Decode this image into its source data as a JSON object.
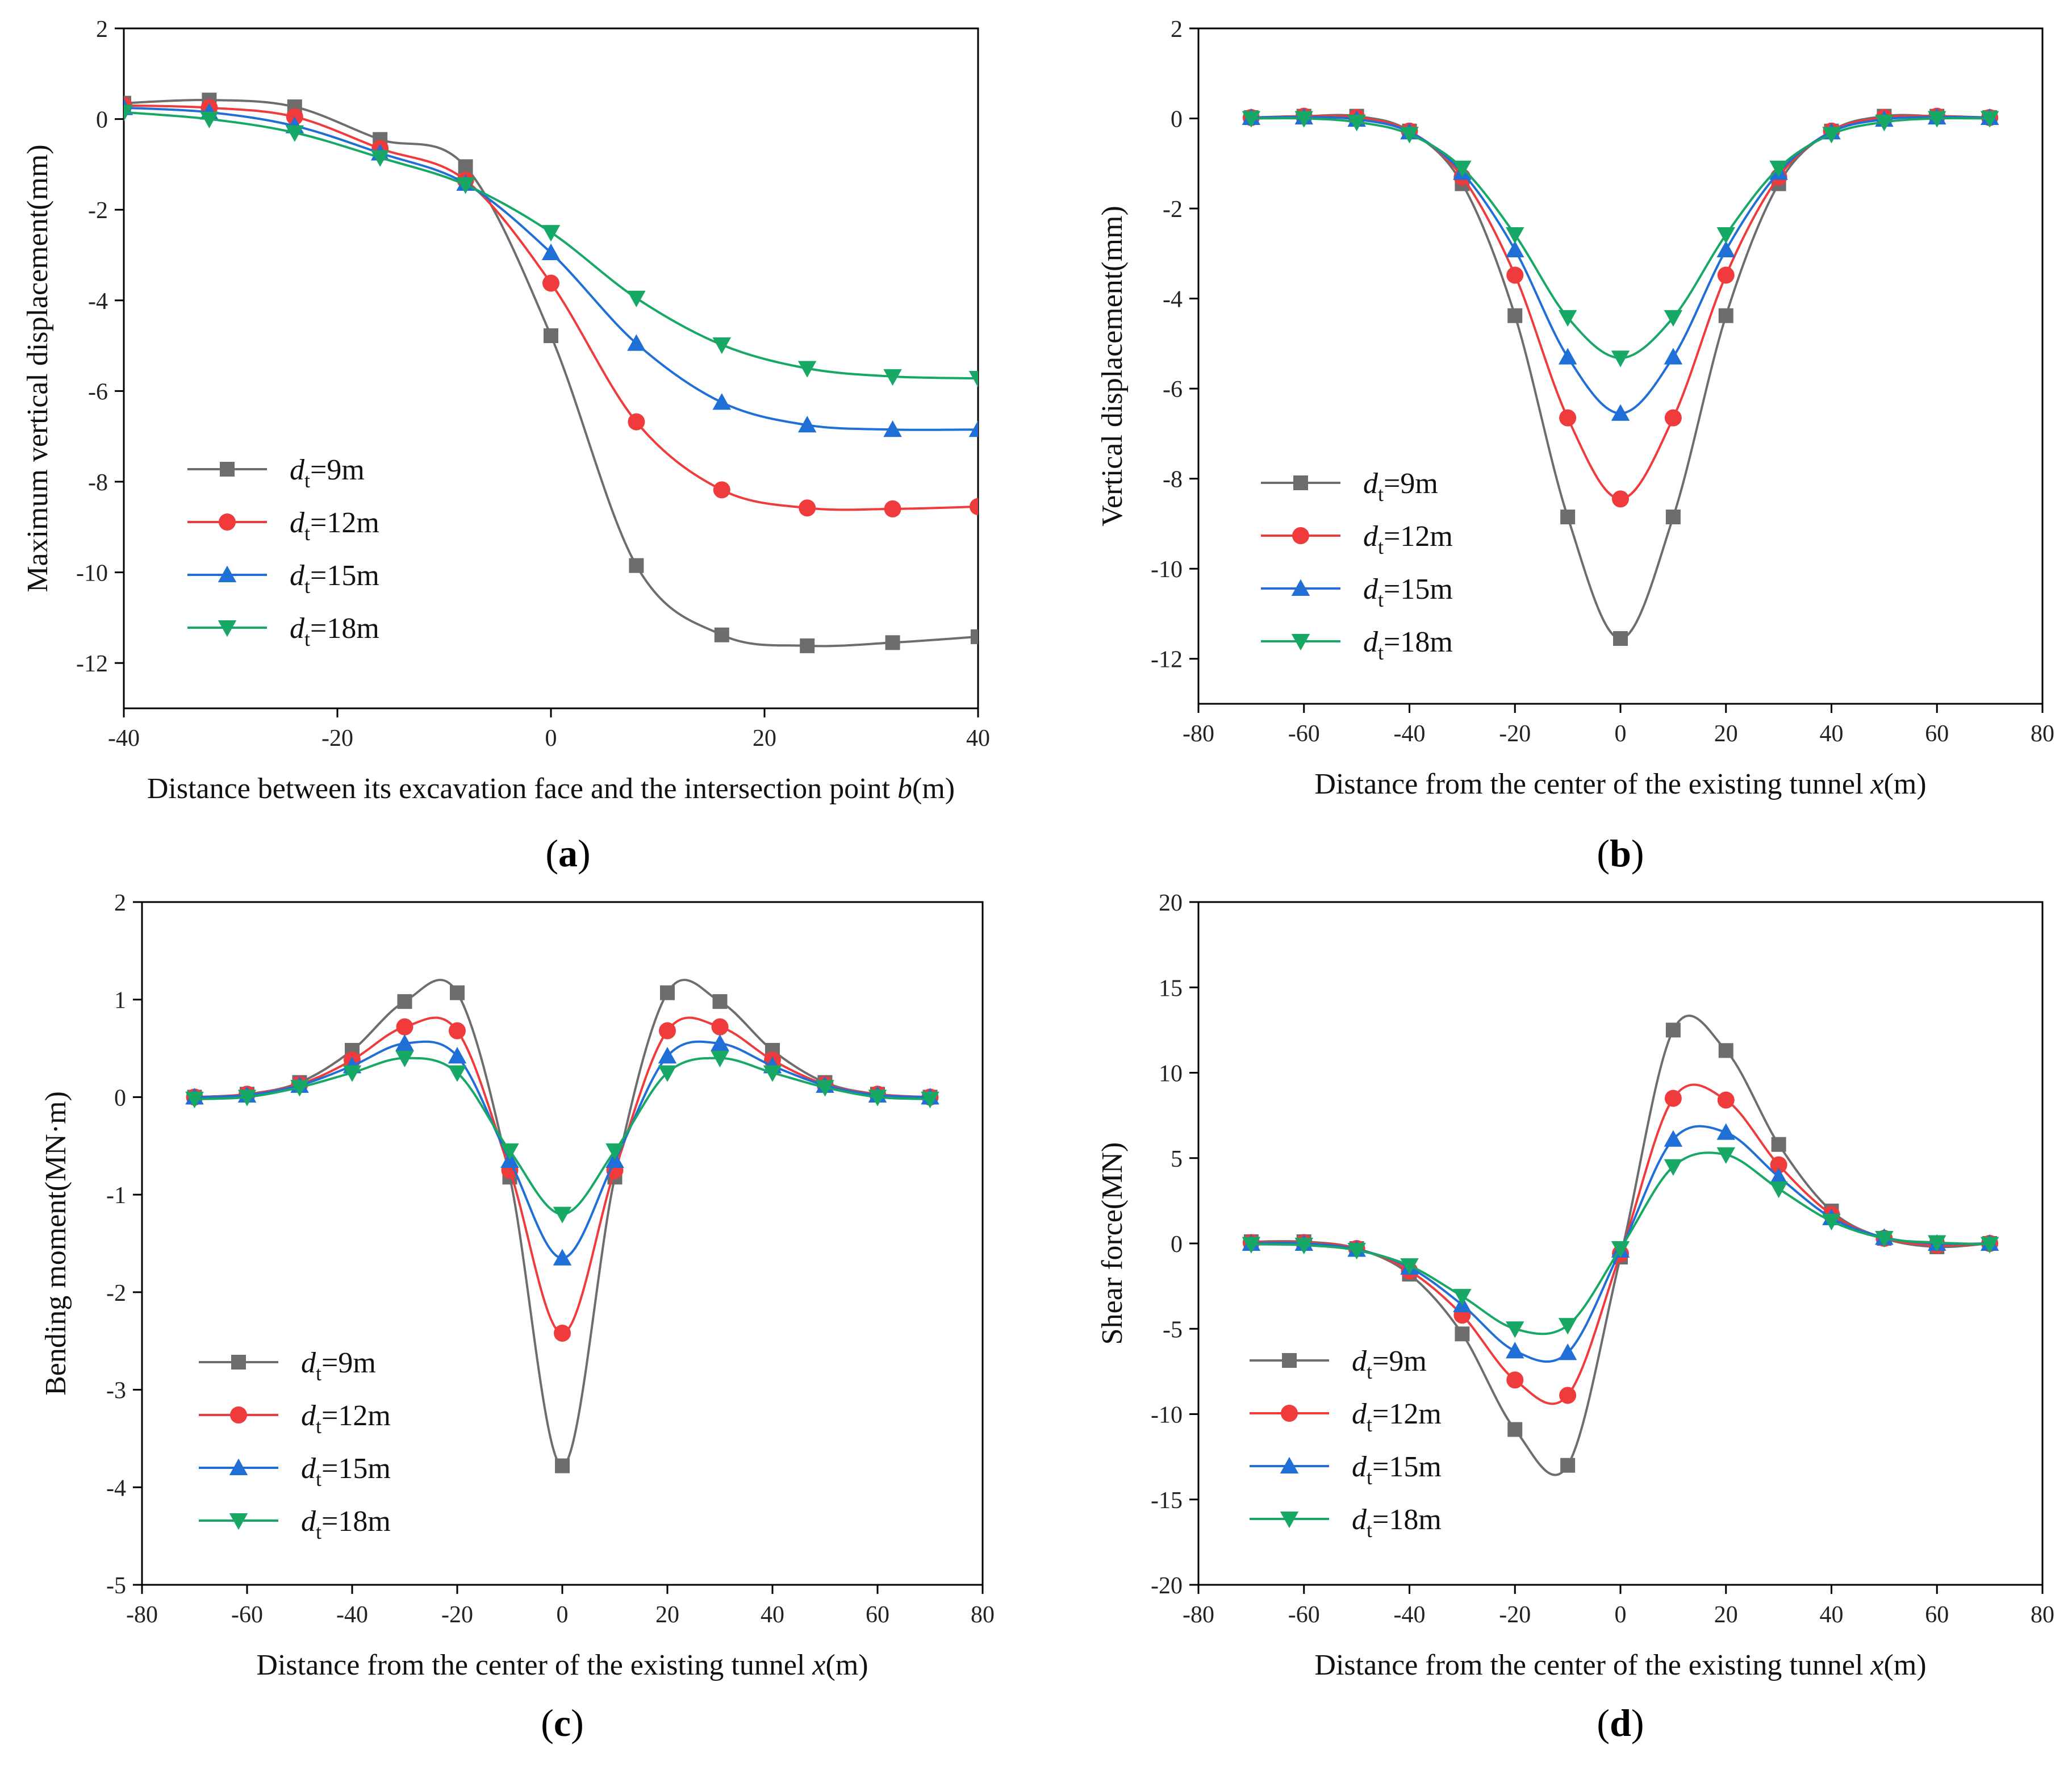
{
  "chart_data": [
    {
      "panel_label": "a",
      "type": "line",
      "xlabel_prefix": "Distance between its excavation face and the intersection point ",
      "xlabel_var": "b",
      "xlabel_suffix": "(m)",
      "ylabel": "Maximum vertical displacement(mm)",
      "xlim": [
        -40,
        40
      ],
      "ylim": [
        -13,
        2
      ],
      "xticks": [
        -40,
        -20,
        0,
        20,
        40
      ],
      "yticks": [
        2,
        0,
        -2,
        -4,
        -6,
        -8,
        -10,
        -12
      ],
      "legend_position": "lower-left",
      "series": [
        {
          "name": "d_t=9m",
          "label_main": "d",
          "label_sub": "t",
          "label_rest": "=9m",
          "color": "#6d6d6d",
          "marker": "square",
          "x": [
            -40,
            -32,
            -24,
            -16,
            -8,
            0,
            8,
            16,
            24,
            32,
            40
          ],
          "y": [
            0.35,
            0.42,
            0.27,
            -0.45,
            -1.05,
            -4.78,
            -9.85,
            -11.38,
            -11.62,
            -11.55,
            -11.42
          ]
        },
        {
          "name": "d_t=12m",
          "label_main": "d",
          "label_sub": "t",
          "label_rest": "=12m",
          "color": "#ef3b3b",
          "marker": "circle",
          "x": [
            -40,
            -32,
            -24,
            -16,
            -8,
            0,
            8,
            16,
            24,
            32,
            40
          ],
          "y": [
            0.3,
            0.25,
            0.05,
            -0.65,
            -1.35,
            -3.62,
            -6.68,
            -8.18,
            -8.58,
            -8.6,
            -8.55
          ]
        },
        {
          "name": "d_t=15m",
          "label_main": "d",
          "label_sub": "t",
          "label_rest": "=15m",
          "color": "#1f6fd6",
          "marker": "triangle-up",
          "x": [
            -40,
            -32,
            -24,
            -16,
            -8,
            0,
            8,
            16,
            24,
            32,
            40
          ],
          "y": [
            0.25,
            0.15,
            -0.15,
            -0.75,
            -1.42,
            -2.95,
            -4.95,
            -6.25,
            -6.75,
            -6.85,
            -6.85
          ]
        },
        {
          "name": "d_t=18m",
          "label_main": "d",
          "label_sub": "t",
          "label_rest": "=18m",
          "color": "#17a866",
          "marker": "triangle-down",
          "x": [
            -40,
            -32,
            -24,
            -16,
            -8,
            0,
            8,
            16,
            24,
            32,
            40
          ],
          "y": [
            0.15,
            0.0,
            -0.3,
            -0.85,
            -1.45,
            -2.5,
            -3.95,
            -4.98,
            -5.5,
            -5.68,
            -5.72
          ]
        }
      ]
    },
    {
      "panel_label": "b",
      "type": "line",
      "xlabel_prefix": "Distance from the center of the existing tunnel ",
      "xlabel_var": "x",
      "xlabel_suffix": "(m)",
      "ylabel": "Vertical displacement(mm)",
      "xlim": [
        -80,
        80
      ],
      "ylim": [
        -13,
        2
      ],
      "xticks": [
        -80,
        -60,
        -40,
        -20,
        0,
        20,
        40,
        60,
        80
      ],
      "yticks": [
        2,
        0,
        -2,
        -4,
        -6,
        -8,
        -10,
        -12
      ],
      "legend_position": "lower-left",
      "series": [
        {
          "name": "d_t=9m",
          "label_main": "d",
          "label_sub": "t",
          "label_rest": "=9m",
          "color": "#6d6d6d",
          "marker": "square",
          "x": [
            -70,
            -60,
            -50,
            -40,
            -30,
            -20,
            -10,
            0,
            10,
            20,
            30,
            40,
            50,
            60,
            70
          ],
          "y": [
            0.02,
            0.05,
            0.05,
            -0.28,
            -1.45,
            -4.38,
            -8.85,
            -11.55,
            -8.85,
            -4.38,
            -1.45,
            -0.28,
            0.05,
            0.05,
            0.02
          ]
        },
        {
          "name": "d_t=12m",
          "label_main": "d",
          "label_sub": "t",
          "label_rest": "=12m",
          "color": "#ef3b3b",
          "marker": "circle",
          "x": [
            -70,
            -60,
            -50,
            -40,
            -30,
            -20,
            -10,
            0,
            10,
            20,
            30,
            40,
            50,
            60,
            70
          ],
          "y": [
            0.02,
            0.05,
            0.02,
            -0.28,
            -1.3,
            -3.48,
            -6.65,
            -8.45,
            -6.65,
            -3.48,
            -1.3,
            -0.28,
            0.02,
            0.05,
            0.02
          ]
        },
        {
          "name": "d_t=15m",
          "label_main": "d",
          "label_sub": "t",
          "label_rest": "=15m",
          "color": "#1f6fd6",
          "marker": "triangle-up",
          "x": [
            -70,
            -60,
            -50,
            -40,
            -30,
            -20,
            -10,
            0,
            10,
            20,
            30,
            40,
            50,
            60,
            70
          ],
          "y": [
            0.02,
            0.03,
            -0.02,
            -0.3,
            -1.2,
            -2.92,
            -5.3,
            -6.55,
            -5.3,
            -2.92,
            -1.2,
            -0.3,
            -0.02,
            0.03,
            0.02
          ]
        },
        {
          "name": "d_t=18m",
          "label_main": "d",
          "label_sub": "t",
          "label_rest": "=18m",
          "color": "#17a866",
          "marker": "triangle-down",
          "x": [
            -70,
            -60,
            -50,
            -40,
            -30,
            -20,
            -10,
            0,
            10,
            20,
            30,
            40,
            50,
            60,
            70
          ],
          "y": [
            0.0,
            0.0,
            -0.08,
            -0.35,
            -1.1,
            -2.58,
            -4.42,
            -5.32,
            -4.42,
            -2.58,
            -1.1,
            -0.35,
            -0.08,
            0.0,
            0.0
          ]
        }
      ]
    },
    {
      "panel_label": "c",
      "type": "line",
      "xlabel_prefix": "Distance from the center of the existing tunnel ",
      "xlabel_var": "x",
      "xlabel_suffix": "(m)",
      "ylabel": "Bending moment(MN·m)",
      "xlim": [
        -80,
        80
      ],
      "ylim": [
        -5,
        2
      ],
      "xticks": [
        -80,
        -60,
        -40,
        -20,
        0,
        20,
        40,
        60,
        80
      ],
      "yticks": [
        2,
        1,
        0,
        -1,
        -2,
        -3,
        -4,
        -5
      ],
      "legend_position": "lower-left",
      "series": [
        {
          "name": "d_t=9m",
          "label_main": "d",
          "label_sub": "t",
          "label_rest": "=9m",
          "color": "#6d6d6d",
          "marker": "square",
          "x": [
            -70,
            -60,
            -50,
            -40,
            -30,
            -20,
            -10,
            0,
            10,
            20,
            30,
            40,
            50,
            60,
            70
          ],
          "y": [
            0.0,
            0.03,
            0.15,
            0.48,
            0.98,
            1.07,
            -0.82,
            -3.78,
            -0.82,
            1.07,
            0.98,
            0.48,
            0.15,
            0.03,
            0.0
          ]
        },
        {
          "name": "d_t=12m",
          "label_main": "d",
          "label_sub": "t",
          "label_rest": "=12m",
          "color": "#ef3b3b",
          "marker": "circle",
          "x": [
            -70,
            -60,
            -50,
            -40,
            -30,
            -20,
            -10,
            0,
            10,
            20,
            30,
            40,
            50,
            60,
            70
          ],
          "y": [
            0.0,
            0.03,
            0.13,
            0.38,
            0.72,
            0.68,
            -0.75,
            -2.42,
            -0.75,
            0.68,
            0.72,
            0.38,
            0.13,
            0.03,
            0.0
          ]
        },
        {
          "name": "d_t=15m",
          "label_main": "d",
          "label_sub": "t",
          "label_rest": "=15m",
          "color": "#1f6fd6",
          "marker": "triangle-up",
          "x": [
            -70,
            -60,
            -50,
            -40,
            -30,
            -20,
            -10,
            0,
            10,
            20,
            30,
            40,
            50,
            60,
            70
          ],
          "y": [
            0.0,
            0.02,
            0.12,
            0.32,
            0.55,
            0.42,
            -0.65,
            -1.65,
            -0.65,
            0.42,
            0.55,
            0.32,
            0.12,
            0.02,
            0.0
          ]
        },
        {
          "name": "d_t=18m",
          "label_main": "d",
          "label_sub": "t",
          "label_rest": "=18m",
          "color": "#17a866",
          "marker": "triangle-down",
          "x": [
            -70,
            -60,
            -50,
            -40,
            -30,
            -20,
            -10,
            0,
            10,
            20,
            30,
            40,
            50,
            60,
            70
          ],
          "y": [
            -0.02,
            0.0,
            0.1,
            0.25,
            0.4,
            0.25,
            -0.55,
            -1.2,
            -0.55,
            0.25,
            0.4,
            0.25,
            0.1,
            0.0,
            -0.02
          ]
        }
      ]
    },
    {
      "panel_label": "d",
      "type": "line",
      "xlabel_prefix": "Distance from the center of the existing tunnel ",
      "xlabel_var": "x",
      "xlabel_suffix": "(m)",
      "ylabel": "Shear force(MN)",
      "xlim": [
        -80,
        80
      ],
      "ylim": [
        -20,
        20
      ],
      "xticks": [
        -80,
        -60,
        -40,
        -20,
        0,
        20,
        40,
        60,
        80
      ],
      "yticks": [
        20,
        15,
        10,
        5,
        0,
        -5,
        -10,
        -15,
        -20
      ],
      "legend_position": "lower-left",
      "series": [
        {
          "name": "d_t=9m",
          "label_main": "d",
          "label_sub": "t",
          "label_rest": "=9m",
          "color": "#6d6d6d",
          "marker": "square",
          "x": [
            -70,
            -60,
            -50,
            -40,
            -30,
            -20,
            -10,
            0,
            10,
            20,
            30,
            40,
            50,
            60,
            70
          ],
          "y": [
            0.1,
            0.1,
            -0.3,
            -1.8,
            -5.3,
            -10.9,
            -13.0,
            -0.8,
            12.5,
            11.3,
            5.8,
            1.9,
            0.3,
            -0.2,
            0.0
          ]
        },
        {
          "name": "d_t=12m",
          "label_main": "d",
          "label_sub": "t",
          "label_rest": "=12m",
          "color": "#ef3b3b",
          "marker": "circle",
          "x": [
            -70,
            -60,
            -50,
            -40,
            -30,
            -20,
            -10,
            0,
            10,
            20,
            30,
            40,
            50,
            60,
            70
          ],
          "y": [
            0.05,
            0.05,
            -0.3,
            -1.6,
            -4.2,
            -8.0,
            -8.9,
            -0.6,
            8.5,
            8.4,
            4.6,
            1.7,
            0.3,
            -0.1,
            0.0
          ]
        },
        {
          "name": "d_t=15m",
          "label_main": "d",
          "label_sub": "t",
          "label_rest": "=15m",
          "color": "#1f6fd6",
          "marker": "triangle-up",
          "x": [
            -70,
            -60,
            -50,
            -40,
            -30,
            -20,
            -10,
            0,
            10,
            20,
            30,
            40,
            50,
            60,
            70
          ],
          "y": [
            0.0,
            0.0,
            -0.35,
            -1.4,
            -3.6,
            -6.3,
            -6.4,
            -0.4,
            6.1,
            6.5,
            3.9,
            1.5,
            0.35,
            0.0,
            0.0
          ]
        },
        {
          "name": "d_t=18m",
          "label_main": "d",
          "label_sub": "t",
          "label_rest": "=18m",
          "color": "#17a866",
          "marker": "triangle-down",
          "x": [
            -70,
            -60,
            -50,
            -40,
            -30,
            -20,
            -10,
            0,
            10,
            20,
            30,
            40,
            50,
            60,
            70
          ],
          "y": [
            -0.05,
            -0.1,
            -0.4,
            -1.3,
            -3.1,
            -5.0,
            -4.8,
            -0.3,
            4.5,
            5.2,
            3.2,
            1.3,
            0.3,
            0.05,
            -0.05
          ]
        }
      ]
    }
  ]
}
